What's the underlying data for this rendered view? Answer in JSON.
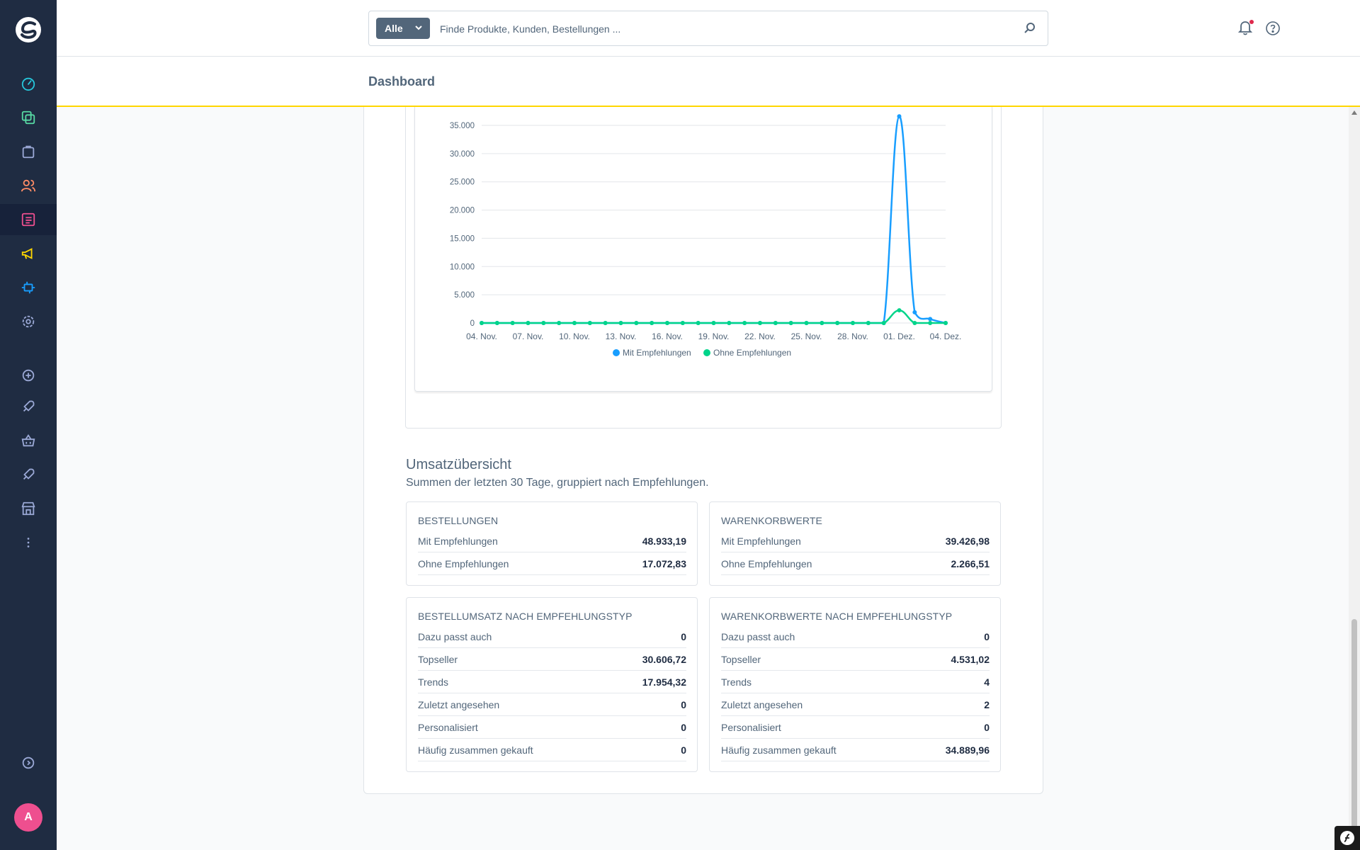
{
  "topbar": {
    "search_type": "Alle",
    "search_placeholder": "Finde Produkte, Kunden, Bestellungen ..."
  },
  "page": {
    "title": "Dashboard"
  },
  "sidebar": {
    "items": [
      {
        "icon": "dashboard-icon",
        "color": "#26c6da"
      },
      {
        "icon": "catalog-icon",
        "color": "#57d9a3"
      },
      {
        "icon": "orders-icon",
        "color": "#9aa8d5"
      },
      {
        "icon": "customers-icon",
        "color": "#ff8c66"
      },
      {
        "icon": "content-icon",
        "color": "#ee4f8f"
      },
      {
        "icon": "marketing-icon",
        "color": "#ffd600"
      },
      {
        "icon": "extensions-icon",
        "color": "#189eff"
      },
      {
        "icon": "settings-icon",
        "color": "#9aa8d5"
      },
      {
        "icon": "add-icon",
        "color": "#9aa8d5"
      },
      {
        "icon": "rocket-icon",
        "color": "#9aa8d5"
      },
      {
        "icon": "basket-icon",
        "color": "#9aa8d5"
      },
      {
        "icon": "rocket-icon",
        "color": "#9aa8d5"
      },
      {
        "icon": "store-icon",
        "color": "#9aa8d5"
      },
      {
        "icon": "more-icon",
        "color": "#9aa8d5"
      }
    ],
    "avatar_letter": "A"
  },
  "chart_data": {
    "type": "line",
    "x": [
      "04. Nov.",
      "05. Nov.",
      "06. Nov.",
      "07. Nov.",
      "08. Nov.",
      "09. Nov.",
      "10. Nov.",
      "11. Nov.",
      "12. Nov.",
      "13. Nov.",
      "14. Nov.",
      "15. Nov.",
      "16. Nov.",
      "17. Nov.",
      "18. Nov.",
      "19. Nov.",
      "20. Nov.",
      "21. Nov.",
      "22. Nov.",
      "23. Nov.",
      "24. Nov.",
      "25. Nov.",
      "26. Nov.",
      "27. Nov.",
      "28. Nov.",
      "29. Nov.",
      "30. Nov.",
      "01. Dez.",
      "02. Dez.",
      "03. Dez.",
      "04. Dez."
    ],
    "x_tick_labels": [
      "04. Nov.",
      "07. Nov.",
      "10. Nov.",
      "13. Nov.",
      "16. Nov.",
      "19. Nov.",
      "22. Nov.",
      "25. Nov.",
      "28. Nov.",
      "01. Dez.",
      "04. Dez."
    ],
    "y_ticks": [
      "0",
      "5.000",
      "10.000",
      "15.000",
      "20.000",
      "25.000",
      "30.000",
      "35.000"
    ],
    "ylim": [
      0,
      35000
    ],
    "series": [
      {
        "name": "Mit Empfehlungen",
        "color": "#189eff",
        "values": [
          0,
          0,
          0,
          0,
          0,
          0,
          0,
          0,
          0,
          0,
          0,
          0,
          0,
          0,
          0,
          0,
          0,
          0,
          0,
          0,
          0,
          0,
          0,
          0,
          0,
          0,
          0,
          36600,
          1900,
          700,
          0
        ]
      },
      {
        "name": "Ohne Empfehlungen",
        "color": "#00d48a",
        "values": [
          0,
          0,
          0,
          0,
          0,
          0,
          0,
          0,
          0,
          0,
          0,
          0,
          0,
          0,
          0,
          0,
          0,
          0,
          0,
          0,
          0,
          0,
          0,
          0,
          0,
          0,
          0,
          2250,
          0,
          0,
          0
        ]
      }
    ],
    "legend_position": "bottom",
    "grid": true
  },
  "summary": {
    "title": "Umsatzübersicht",
    "subtitle": "Summen der letzten 30 Tage, gruppiert nach Empfehlungen.",
    "cards": [
      {
        "title": "BESTELLUNGEN",
        "rows": [
          {
            "label": "Mit Empfehlungen",
            "value": "48.933,19"
          },
          {
            "label": "Ohne Empfehlungen",
            "value": "17.072,83"
          }
        ]
      },
      {
        "title": "WARENKORBWERTE",
        "rows": [
          {
            "label": "Mit Empfehlungen",
            "value": "39.426,98"
          },
          {
            "label": "Ohne Empfehlungen",
            "value": "2.266,51"
          }
        ]
      },
      {
        "title": "BESTELLUMSATZ NACH EMPFEHLUNGSTYP",
        "rows": [
          {
            "label": "Dazu passt auch",
            "value": "0"
          },
          {
            "label": "Topseller",
            "value": "30.606,72"
          },
          {
            "label": "Trends",
            "value": "17.954,32"
          },
          {
            "label": "Zuletzt angesehen",
            "value": "0"
          },
          {
            "label": "Personalisiert",
            "value": "0"
          },
          {
            "label": "Häufig zusammen gekauft",
            "value": "0"
          }
        ]
      },
      {
        "title": "WARENKORBWERTE NACH EMPFEHLUNGSTYP",
        "rows": [
          {
            "label": "Dazu passt auch",
            "value": "0"
          },
          {
            "label": "Topseller",
            "value": "4.531,02"
          },
          {
            "label": "Trends",
            "value": "4"
          },
          {
            "label": "Zuletzt angesehen",
            "value": "2"
          },
          {
            "label": "Personalisiert",
            "value": "0"
          },
          {
            "label": "Häufig zusammen gekauft",
            "value": "34.889,96"
          }
        ]
      }
    ]
  }
}
